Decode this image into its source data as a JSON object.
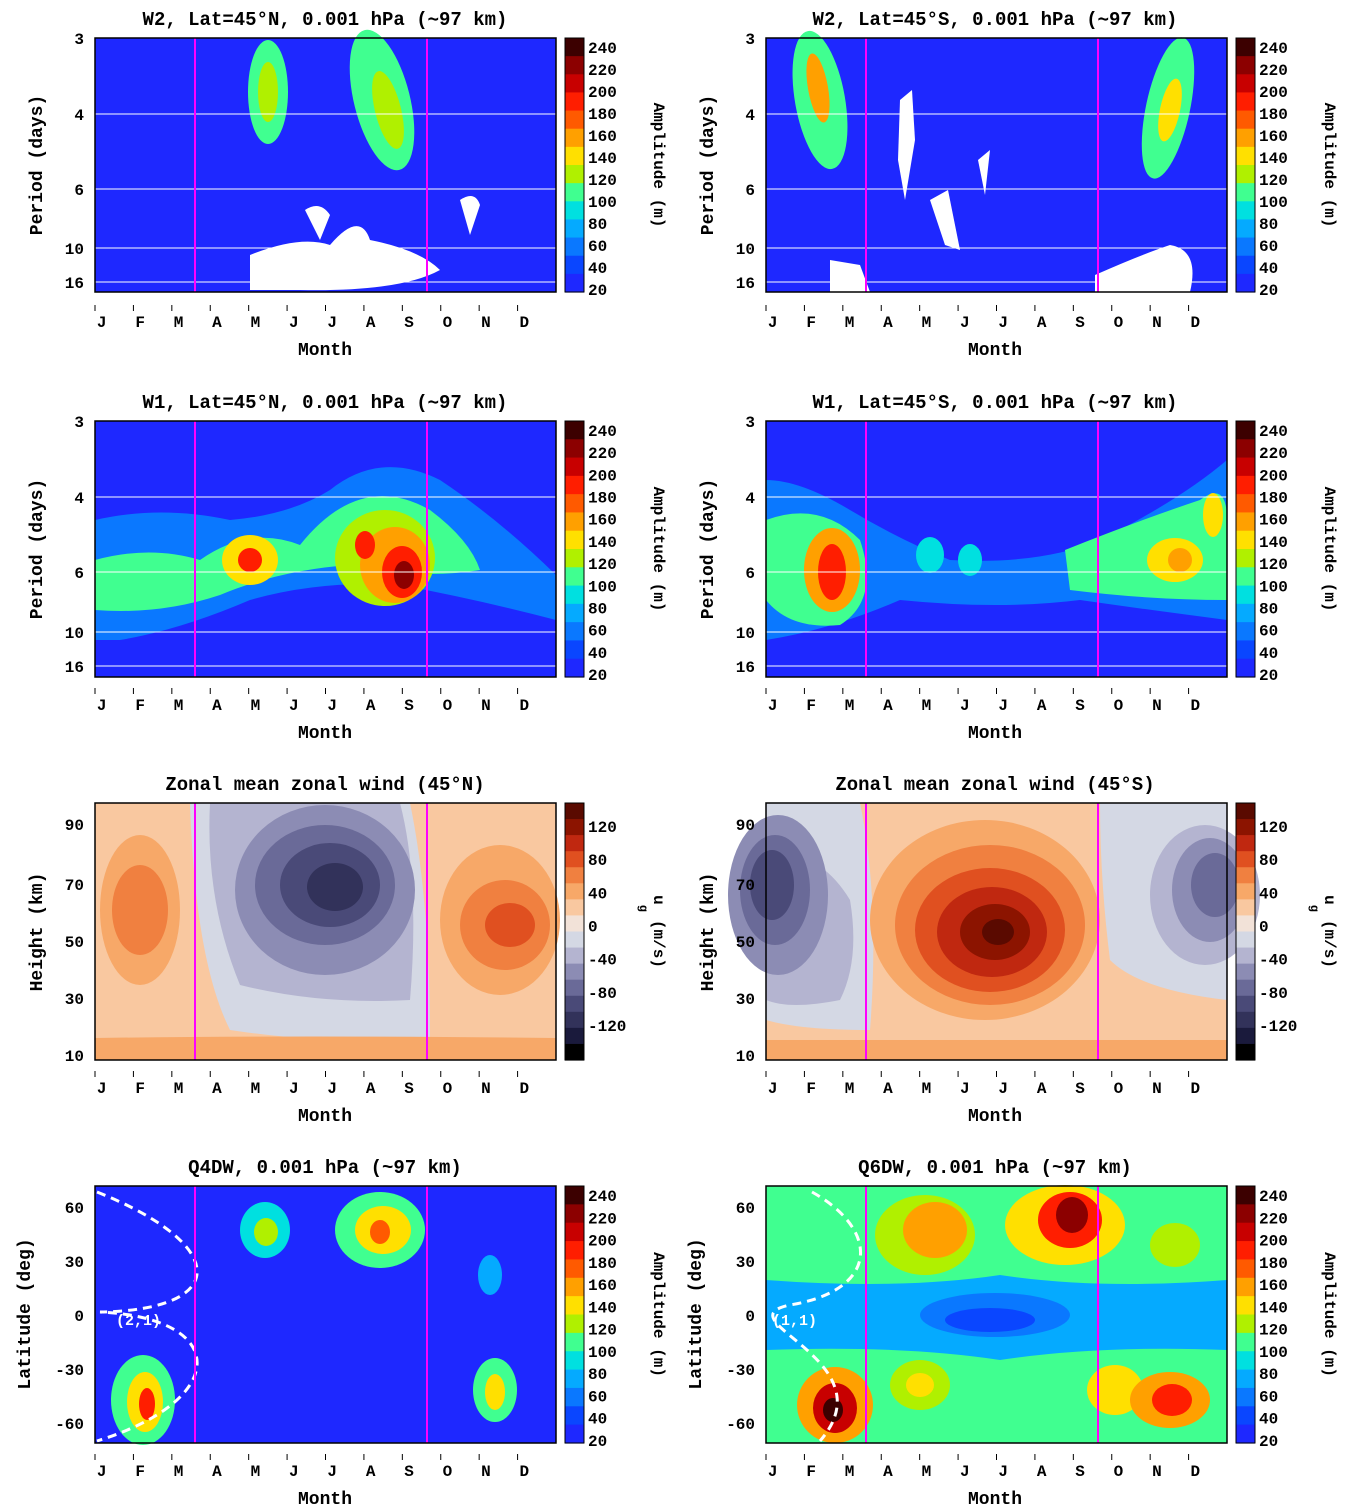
{
  "colors": {
    "amplitude_scale": [
      "#1e28ff",
      "#0a46ff",
      "#0a78ff",
      "#05aaff",
      "#00e0e0",
      "#40ff90",
      "#b0f000",
      "#ffe000",
      "#ffa000",
      "#ff5a00",
      "#ff1e00",
      "#c80000",
      "#8c0000",
      "#3c0000"
    ],
    "wind_scale": [
      "#000000",
      "#1a1a3c",
      "#32325a",
      "#4a4a78",
      "#6a6a98",
      "#8c8cb4",
      "#b4b4d0",
      "#d4d8e4",
      "#f2e2d8",
      "#f9c8a0",
      "#f7a868",
      "#f08040",
      "#e05020",
      "#c02810",
      "#8c1400",
      "#5a0a00"
    ],
    "marker_line": "#ff00ff",
    "grid_line": "#ffffff"
  },
  "months": [
    "J",
    "F",
    "M",
    "A",
    "M",
    "J",
    "J",
    "A",
    "S",
    "O",
    "N",
    "D"
  ],
  "month_axis_label": "Month",
  "amplitude_label": "Amplitude (m)",
  "amplitude_ticks": [
    "240",
    "220",
    "200",
    "180",
    "160",
    "140",
    "120",
    "100",
    "80",
    "60",
    "40",
    "20"
  ],
  "wind_label_main": "u",
  "wind_label_sub": "g",
  "wind_label_unit": "(m/s)",
  "wind_ticks": [
    "120",
    "80",
    "40",
    "0",
    "-40",
    "-80",
    "-120"
  ],
  "period_axis_label": "Period (days)",
  "period_ticks": [
    "3",
    "4",
    "6",
    "10",
    "16"
  ],
  "height_axis_label": "Height (km)",
  "height_ticks": [
    "90",
    "70",
    "50",
    "30",
    "10"
  ],
  "latitude_axis_label": "Latitude (deg)",
  "latitude_ticks": [
    "60",
    "30",
    "0",
    "-30",
    "-60"
  ],
  "chart_data": [
    {
      "type": "heatmap",
      "title": "W2, Lat=45°N, 0.001 hPa (∼97 km)",
      "xlabel": "Month",
      "ylabel": "Period (days)",
      "x_categories": [
        "J",
        "F",
        "M",
        "A",
        "M",
        "J",
        "J",
        "A",
        "S",
        "O",
        "N",
        "D"
      ],
      "y_ticks": [
        3,
        4,
        6,
        10,
        16
      ],
      "colorbar": {
        "label": "Amplitude (m)",
        "range": [
          20,
          240
        ]
      }
    },
    {
      "type": "heatmap",
      "title": "W2, Lat=45°S, 0.001 hPa (∼97 km)",
      "xlabel": "Month",
      "ylabel": "Period (days)",
      "x_categories": [
        "J",
        "F",
        "M",
        "A",
        "M",
        "J",
        "J",
        "A",
        "S",
        "O",
        "N",
        "D"
      ],
      "y_ticks": [
        3,
        4,
        6,
        10,
        16
      ],
      "colorbar": {
        "label": "Amplitude (m)",
        "range": [
          20,
          240
        ]
      }
    },
    {
      "type": "heatmap",
      "title": "W1, Lat=45°N, 0.001 hPa (∼97 km)",
      "xlabel": "Month",
      "ylabel": "Period (days)",
      "x_categories": [
        "J",
        "F",
        "M",
        "A",
        "M",
        "J",
        "J",
        "A",
        "S",
        "O",
        "N",
        "D"
      ],
      "y_ticks": [
        3,
        4,
        6,
        10,
        16
      ],
      "colorbar": {
        "label": "Amplitude (m)",
        "range": [
          20,
          240
        ]
      }
    },
    {
      "type": "heatmap",
      "title": "W1, Lat=45°S, 0.001 hPa (∼97 km)",
      "xlabel": "Month",
      "ylabel": "Period (days)",
      "x_categories": [
        "J",
        "F",
        "M",
        "A",
        "M",
        "J",
        "J",
        "A",
        "S",
        "O",
        "N",
        "D"
      ],
      "y_ticks": [
        3,
        4,
        6,
        10,
        16
      ],
      "colorbar": {
        "label": "Amplitude (m)",
        "range": [
          20,
          240
        ]
      }
    },
    {
      "type": "heatmap",
      "title": "Zonal mean zonal wind (45°N)",
      "xlabel": "Month",
      "ylabel": "Height (km)",
      "x_categories": [
        "J",
        "F",
        "M",
        "A",
        "M",
        "J",
        "J",
        "A",
        "S",
        "O",
        "N",
        "D"
      ],
      "y_ticks": [
        10,
        30,
        50,
        70,
        90
      ],
      "colorbar": {
        "label": "u g (m/s)",
        "range": [
          -140,
          140
        ]
      }
    },
    {
      "type": "heatmap",
      "title": "Zonal mean zonal wind (45°S)",
      "xlabel": "Month",
      "ylabel": "Height (km)",
      "x_categories": [
        "J",
        "F",
        "M",
        "A",
        "M",
        "J",
        "J",
        "A",
        "S",
        "O",
        "N",
        "D"
      ],
      "y_ticks": [
        10,
        30,
        50,
        70,
        90
      ],
      "colorbar": {
        "label": "u g (m/s)",
        "range": [
          -140,
          140
        ]
      }
    },
    {
      "type": "heatmap",
      "title": "Q4DW, 0.001 hPa (~97 km)",
      "xlabel": "Month",
      "ylabel": "Latitude (deg)",
      "x_categories": [
        "J",
        "F",
        "M",
        "A",
        "M",
        "J",
        "J",
        "A",
        "S",
        "O",
        "N",
        "D"
      ],
      "y_ticks": [
        60,
        30,
        0,
        -30,
        -60
      ],
      "annotation": "(2,1)",
      "colorbar": {
        "label": "Amplitude (m)",
        "range": [
          20,
          240
        ]
      }
    },
    {
      "type": "heatmap",
      "title": "Q6DW, 0.001 hPa (~97 km)",
      "xlabel": "Month",
      "ylabel": "Latitude (deg)",
      "x_categories": [
        "J",
        "F",
        "M",
        "A",
        "M",
        "J",
        "J",
        "A",
        "S",
        "O",
        "N",
        "D"
      ],
      "y_ticks": [
        60,
        30,
        0,
        -30,
        -60
      ],
      "annotation": "(1,1)",
      "colorbar": {
        "label": "Amplitude (m)",
        "range": [
          20,
          240
        ]
      }
    }
  ],
  "panels": [
    {
      "title": "W2, Lat=45°N, 0.001 hPa (∼97 km)"
    },
    {
      "title": "W2, Lat=45°S, 0.001 hPa (∼97 km)"
    },
    {
      "title": "W1, Lat=45°N, 0.001 hPa (∼97 km)"
    },
    {
      "title": "W1, Lat=45°S, 0.001 hPa (∼97 km)"
    },
    {
      "title": "Zonal mean zonal wind (45°N)"
    },
    {
      "title": "Zonal mean zonal wind (45°S)"
    },
    {
      "title": "Q4DW, 0.001 hPa (~97 km)",
      "annotation": "(2,1)"
    },
    {
      "title": "Q6DW, 0.001 hPa (~97 km)",
      "annotation": "(1,1)"
    }
  ]
}
